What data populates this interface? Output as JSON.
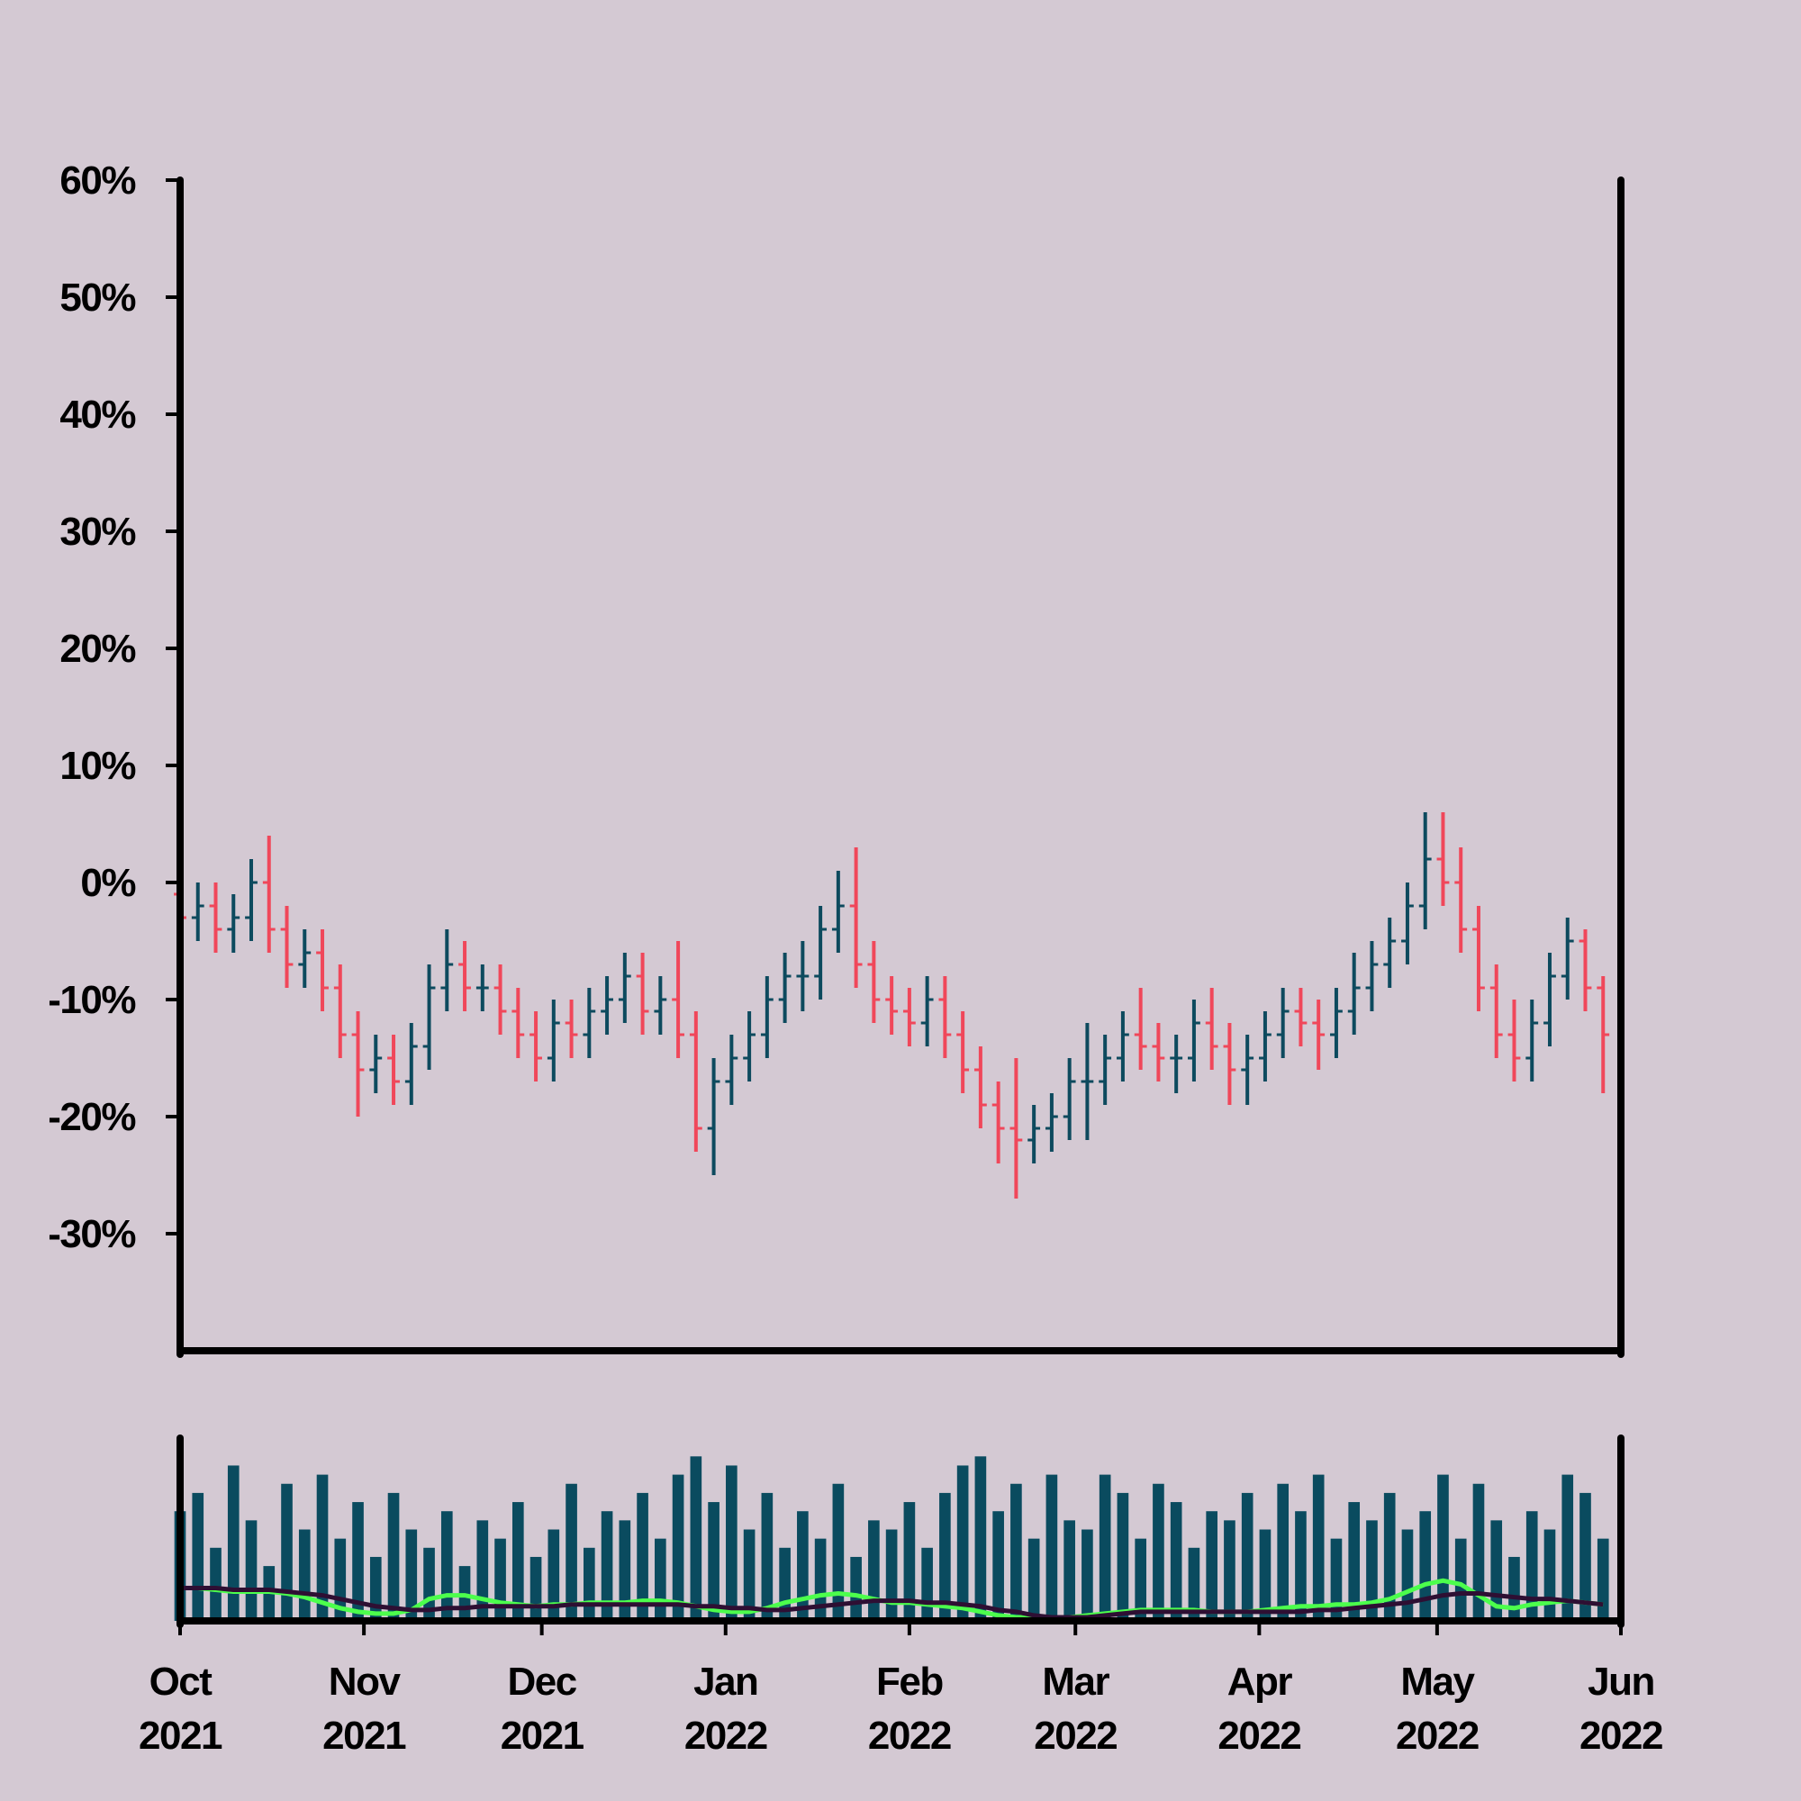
{
  "chart_data": {
    "type": "ohlc",
    "x": [
      "2021-10-01",
      "2021-10-04",
      "2021-10-07",
      "2021-10-10",
      "2021-10-13",
      "2021-10-16",
      "2021-10-19",
      "2021-10-22",
      "2021-10-25",
      "2021-10-28",
      "2021-10-31",
      "2021-11-03",
      "2021-11-06",
      "2021-11-09",
      "2021-11-12",
      "2021-11-15",
      "2021-11-18",
      "2021-11-21",
      "2021-11-24",
      "2021-11-27",
      "2021-11-30",
      "2021-12-03",
      "2021-12-06",
      "2021-12-09",
      "2021-12-12",
      "2021-12-15",
      "2021-12-18",
      "2021-12-21",
      "2021-12-24",
      "2021-12-27",
      "2021-12-30",
      "2022-01-02",
      "2022-01-05",
      "2022-01-08",
      "2022-01-11",
      "2022-01-14",
      "2022-01-17",
      "2022-01-20",
      "2022-01-23",
      "2022-01-26",
      "2022-01-29",
      "2022-02-01",
      "2022-02-04",
      "2022-02-07",
      "2022-02-10",
      "2022-02-13",
      "2022-02-16",
      "2022-02-19",
      "2022-02-22",
      "2022-02-25",
      "2022-02-28",
      "2022-03-03",
      "2022-03-06",
      "2022-03-09",
      "2022-03-12",
      "2022-03-15",
      "2022-03-18",
      "2022-03-21",
      "2022-03-24",
      "2022-03-27",
      "2022-03-30",
      "2022-04-02",
      "2022-04-05",
      "2022-04-08",
      "2022-04-11",
      "2022-04-14",
      "2022-04-17",
      "2022-04-20",
      "2022-04-23",
      "2022-04-26",
      "2022-04-29",
      "2022-05-02",
      "2022-05-05",
      "2022-05-08",
      "2022-05-11",
      "2022-05-14",
      "2022-05-17",
      "2022-05-20",
      "2022-05-23",
      "2022-05-26",
      "2022-05-29"
    ],
    "open": [
      -1,
      -3,
      -2,
      -4,
      -3,
      0,
      -4,
      -7,
      -6,
      -9,
      -13,
      -16,
      -15,
      -17,
      -14,
      -9,
      -7,
      -9,
      -9,
      -11,
      -13,
      -15,
      -12,
      -13,
      -11,
      -10,
      -8,
      -11,
      -10,
      -13,
      -21,
      -17,
      -15,
      -13,
      -10,
      -8,
      -8,
      -4,
      -2,
      -7,
      -10,
      -11,
      -12,
      -10,
      -13,
      -16,
      -19,
      -21,
      -22,
      -21,
      -20,
      -17,
      -17,
      -15,
      -13,
      -14,
      -15,
      -15,
      -12,
      -14,
      -16,
      -15,
      -13,
      -11,
      -12,
      -13,
      -11,
      -9,
      -7,
      -5,
      -2,
      2,
      0,
      -4,
      -9,
      -13,
      -15,
      -12,
      -8,
      -5,
      -9
    ],
    "high": [
      1,
      0,
      0,
      -1,
      2,
      4,
      -2,
      -4,
      -4,
      -7,
      -11,
      -13,
      -13,
      -12,
      -7,
      -4,
      -5,
      -7,
      -7,
      -9,
      -11,
      -10,
      -10,
      -9,
      -8,
      -6,
      -6,
      -8,
      -5,
      -11,
      -15,
      -13,
      -11,
      -8,
      -6,
      -5,
      -2,
      1,
      3,
      -5,
      -8,
      -9,
      -8,
      -8,
      -11,
      -14,
      -17,
      -15,
      -19,
      -18,
      -15,
      -12,
      -13,
      -11,
      -9,
      -12,
      -13,
      -10,
      -9,
      -12,
      -13,
      -11,
      -9,
      -9,
      -10,
      -9,
      -6,
      -5,
      -3,
      0,
      6,
      6,
      3,
      -2,
      -7,
      -10,
      -10,
      -6,
      -3,
      -4,
      -8
    ],
    "low": [
      -5,
      -5,
      -6,
      -6,
      -5,
      -6,
      -9,
      -9,
      -11,
      -15,
      -20,
      -18,
      -19,
      -19,
      -16,
      -11,
      -11,
      -11,
      -13,
      -15,
      -17,
      -17,
      -15,
      -15,
      -13,
      -12,
      -13,
      -13,
      -15,
      -23,
      -25,
      -19,
      -17,
      -15,
      -12,
      -11,
      -10,
      -6,
      -9,
      -12,
      -13,
      -14,
      -14,
      -15,
      -18,
      -21,
      -24,
      -27,
      -24,
      -23,
      -22,
      -22,
      -19,
      -17,
      -16,
      -17,
      -18,
      -17,
      -16,
      -19,
      -19,
      -17,
      -15,
      -14,
      -16,
      -15,
      -13,
      -11,
      -9,
      -7,
      -4,
      -2,
      -6,
      -11,
      -15,
      -17,
      -17,
      -14,
      -10,
      -11,
      -18
    ],
    "close": [
      -3,
      -2,
      -4,
      -3,
      0,
      -4,
      -7,
      -6,
      -9,
      -13,
      -16,
      -15,
      -17,
      -14,
      -9,
      -7,
      -9,
      -9,
      -11,
      -13,
      -15,
      -12,
      -13,
      -11,
      -10,
      -8,
      -11,
      -10,
      -13,
      -21,
      -17,
      -15,
      -13,
      -10,
      -8,
      -8,
      -4,
      -2,
      -7,
      -10,
      -11,
      -12,
      -10,
      -13,
      -16,
      -19,
      -21,
      -22,
      -21,
      -20,
      -17,
      -17,
      -15,
      -13,
      -14,
      -15,
      -15,
      -12,
      -14,
      -16,
      -15,
      -13,
      -11,
      -12,
      -13,
      -11,
      -9,
      -7,
      -5,
      -2,
      2,
      0,
      -4,
      -9,
      -13,
      -15,
      -12,
      -8,
      -5,
      -9,
      -13
    ],
    "up_color": "#0d4a5e",
    "down_color": "#f0475a",
    "xlim": [
      "2021-10-01",
      "2022-06-01"
    ],
    "xticks": [
      {
        "value": "2021-10-01",
        "label": "Oct\n2021"
      },
      {
        "value": "2021-11-01",
        "label": "Nov\n2021"
      },
      {
        "value": "2021-12-01",
        "label": "Dec\n2021"
      },
      {
        "value": "2022-01-01",
        "label": "Jan\n2022"
      },
      {
        "value": "2022-02-01",
        "label": "Feb\n2022"
      },
      {
        "value": "2022-03-01",
        "label": "Mar\n2022"
      },
      {
        "value": "2022-04-01",
        "label": "Apr\n2022"
      },
      {
        "value": "2022-05-01",
        "label": "May\n2022"
      },
      {
        "value": "2022-06-01",
        "label": "Jun\n2022"
      }
    ],
    "ylim": [
      -40,
      60
    ],
    "yticks": [
      {
        "value": 60,
        "label": "60%"
      },
      {
        "value": 50,
        "label": "50%"
      },
      {
        "value": 40,
        "label": "40%"
      },
      {
        "value": 30,
        "label": "30%"
      },
      {
        "value": 20,
        "label": "20%"
      },
      {
        "value": 10,
        "label": "10%"
      },
      {
        "value": 0,
        "label": "0%"
      },
      {
        "value": -10,
        "label": "-10%"
      },
      {
        "value": -20,
        "label": "-20%"
      },
      {
        "value": -30,
        "label": "-30%"
      }
    ],
    "volume": {
      "color": "#0a4b5f",
      "ylim": [
        0,
        100
      ],
      "values": [
        60,
        70,
        40,
        85,
        55,
        30,
        75,
        50,
        80,
        45,
        65,
        35,
        70,
        50,
        40,
        60,
        30,
        55,
        45,
        65,
        35,
        50,
        75,
        40,
        60,
        55,
        70,
        45,
        80,
        90,
        65,
        85,
        50,
        70,
        40,
        60,
        45,
        75,
        35,
        55,
        50,
        65,
        40,
        70,
        85,
        90,
        60,
        75,
        45,
        80,
        55,
        50,
        80,
        70,
        45,
        75,
        65,
        40,
        60,
        55,
        70,
        50,
        75,
        60,
        80,
        45,
        65,
        55,
        70,
        50,
        60,
        80,
        45,
        75,
        55,
        35,
        60,
        50,
        80,
        70,
        45
      ],
      "series": [
        {
          "color": "#4cff4c",
          "values": [
            18,
            18,
            17,
            16,
            16,
            16,
            15,
            13,
            10,
            7,
            5,
            4,
            4,
            6,
            12,
            14,
            14,
            12,
            10,
            9,
            8,
            9,
            9,
            10,
            10,
            10,
            11,
            11,
            10,
            8,
            6,
            5,
            5,
            7,
            10,
            12,
            14,
            15,
            14,
            12,
            10,
            10,
            9,
            8,
            7,
            5,
            3,
            2,
            2,
            2,
            2,
            3,
            4,
            5,
            6,
            6,
            6,
            6,
            5,
            5,
            5,
            6,
            7,
            8,
            8,
            9,
            9,
            10,
            12,
            16,
            20,
            22,
            20,
            14,
            8,
            7,
            9,
            10,
            11,
            10,
            9
          ]
        },
        {
          "color": "#2e0f33",
          "values": [
            18,
            18,
            18,
            17,
            17,
            17,
            16,
            15,
            14,
            12,
            10,
            8,
            7,
            6,
            6,
            7,
            7,
            8,
            8,
            8,
            8,
            8,
            9,
            9,
            9,
            9,
            9,
            9,
            9,
            8,
            8,
            7,
            7,
            6,
            6,
            7,
            8,
            9,
            10,
            11,
            11,
            11,
            10,
            10,
            9,
            8,
            6,
            5,
            3,
            2,
            2,
            2,
            3,
            4,
            5,
            5,
            5,
            5,
            5,
            5,
            5,
            5,
            5,
            5,
            6,
            6,
            7,
            8,
            9,
            10,
            12,
            14,
            15,
            15,
            14,
            13,
            12,
            12,
            11,
            10,
            9
          ]
        }
      ]
    }
  }
}
